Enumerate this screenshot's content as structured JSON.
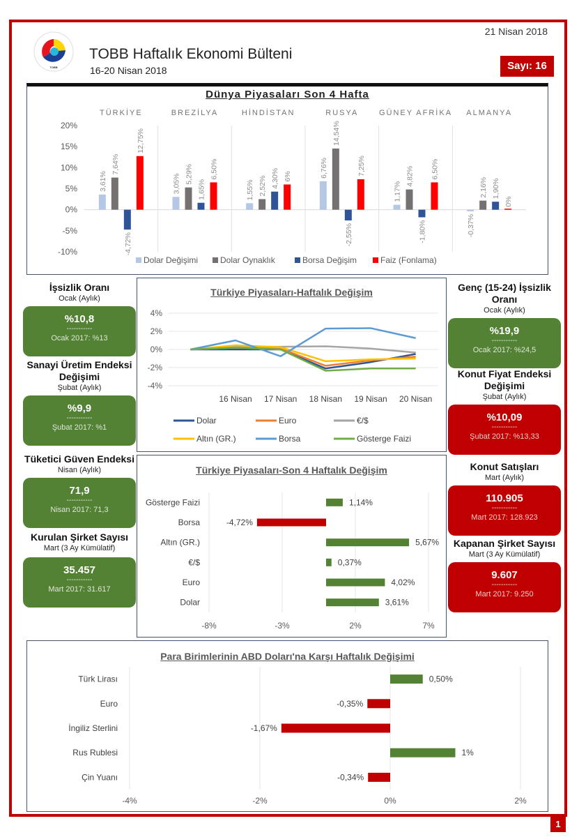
{
  "header": {
    "date": "21 Nisan 2018",
    "title": "TOBB Haftalık Ekonomi Bülteni",
    "subtitle": "16-20 Nisan 2018",
    "issue": "Sayı: 16",
    "logo_text": "TÜRKİYE ODALAR VE BORSALAR BİRLİĞİ TOBB",
    "page_number": "1"
  },
  "colors": {
    "brand_red": "#c00000",
    "kpi_green": "#548235",
    "dolar_degisimi": "#b4c7e7",
    "dolar_oynaklik": "#767171",
    "borsa_degisim": "#2f5597",
    "faiz": "#ff0000"
  },
  "kpis_left": [
    {
      "title": "İşsizlik Oranı",
      "period": "Ocak (Aylık)",
      "value": "%10,8",
      "dash": "-----------",
      "previous": "Ocak 2017: %13",
      "status": "green"
    },
    {
      "title": "Sanayi Üretim Endeksi Değişimi",
      "period": "Şubat (Aylık)",
      "value": "%9,9",
      "dash": "-----------",
      "previous": "Şubat 2017: %1",
      "status": "green"
    },
    {
      "title": "Tüketici Güven Endeksi",
      "period": "Nisan (Aylık)",
      "value": "71,9",
      "dash": "-----------",
      "previous": "Nisan 2017: 71,3",
      "status": "green"
    },
    {
      "title": "Kurulan Şirket Sayısı",
      "period": "Mart (3 Ay Kümülatif)",
      "value": "35.457",
      "dash": "-----------",
      "previous": "Mart 2017: 31.617",
      "status": "green"
    }
  ],
  "kpis_right": [
    {
      "title": "Genç (15-24) İşsizlik Oranı",
      "period": "Ocak (Aylık)",
      "value": "%19,9",
      "dash": "-----------",
      "previous": "Ocak 2017: %24,5",
      "status": "green"
    },
    {
      "title": "Konut Fiyat Endeksi Değişimi",
      "period": "Şubat (Aylık)",
      "value": "%10,09",
      "dash": "-----------",
      "previous": "Şubat 2017: %13,33",
      "status": "red"
    },
    {
      "title": "Konut Satışları",
      "period": "Mart (Aylık)",
      "value": "110.905",
      "dash": "-----------",
      "previous": "Mart 2017: 128.923",
      "status": "red"
    },
    {
      "title": "Kapanan Şirket Sayısı",
      "period": "Mart (3 Ay Kümülatif)",
      "value": "9.607",
      "dash": "-----------",
      "previous": "Mart 2017: 9.250",
      "status": "red"
    }
  ],
  "chart_data": [
    {
      "type": "bar",
      "title": "Dünya Piyasaları Son 4 Hafta",
      "categories": [
        "TÜRKİYE",
        "BREZİLYA",
        "HİNDİSTAN",
        "RUSYA",
        "GÜNEY AFRİKA",
        "ALMANYA"
      ],
      "series": [
        {
          "name": "Dolar Değişimi",
          "color": "#b4c7e7",
          "values": [
            3.61,
            3.05,
            1.55,
            6.76,
            1.17,
            -0.37
          ],
          "labels": [
            "3,61%",
            "3,05%",
            "1,55%",
            "6,76%",
            "1,17%",
            "-0,37%"
          ]
        },
        {
          "name": "Dolar Oynaklık",
          "color": "#767171",
          "values": [
            7.64,
            5.29,
            2.52,
            14.54,
            4.82,
            2.16
          ],
          "labels": [
            "7,64%",
            "5,29%",
            "2,52%",
            "14,54%",
            "4,82%",
            "2,16%"
          ]
        },
        {
          "name": "Borsa Değişim",
          "color": "#2f5597",
          "values": [
            -4.72,
            1.65,
            4.3,
            -2.55,
            -1.8,
            1.9
          ],
          "labels": [
            "-4,72%",
            "1,65%",
            "4,30%",
            "-2,55%",
            "-1,80%",
            "1,90%"
          ]
        },
        {
          "name": "Faiz (Fonlama)",
          "color": "#ff0000",
          "values": [
            12.75,
            6.5,
            6.0,
            7.25,
            6.5,
            0
          ],
          "labels": [
            "12,75%",
            "6,50%",
            "6%",
            "7,25%",
            "6,50%",
            "0%"
          ]
        }
      ],
      "yticks": [
        "20%",
        "15%",
        "10%",
        "5%",
        "0%",
        "-5%",
        "-10%"
      ],
      "ylim": [
        -10,
        20
      ],
      "legend": "bottom"
    },
    {
      "type": "line",
      "title": "Türkiye Piyasaları-Haftalık Değişim",
      "categories": [
        "",
        "16 Nisan",
        "17 Nisan",
        "18 Nisan",
        "19 Nisan",
        "20 Nisan"
      ],
      "series": [
        {
          "name": "Dolar",
          "color": "#2f5597",
          "values": [
            0,
            0.0,
            0.0,
            -2.1,
            -1.4,
            -0.5
          ]
        },
        {
          "name": "Euro",
          "color": "#ed7d31",
          "values": [
            0,
            0.2,
            0.1,
            -1.8,
            -1.2,
            -0.8
          ]
        },
        {
          "name": "€/$",
          "color": "#a5a5a5",
          "values": [
            0,
            0.3,
            0.3,
            0.35,
            0.1,
            -0.35
          ]
        },
        {
          "name": "Altın (GR.)",
          "color": "#ffc000",
          "values": [
            0,
            0.45,
            0.25,
            -1.3,
            -1.1,
            -1.0
          ]
        },
        {
          "name": "Borsa",
          "color": "#5b9bd5",
          "values": [
            0,
            1.0,
            -0.75,
            2.3,
            2.35,
            1.25
          ]
        },
        {
          "name": "Gösterge Faizi",
          "color": "#70ad47",
          "values": [
            0,
            0.2,
            0.0,
            -2.35,
            -2.1,
            -2.1
          ]
        }
      ],
      "yticks": [
        "4%",
        "2%",
        "0%",
        "-2%",
        "-4%"
      ],
      "ylim": [
        -4,
        4
      ],
      "legend": "bottom"
    },
    {
      "type": "bar",
      "orientation": "horizontal",
      "title": "Türkiye Piyasaları-Son 4 Haftalık Değişim",
      "categories": [
        "Gösterge Faizi",
        "Borsa",
        "Altın (GR.)",
        "€/$",
        "Euro",
        "Dolar"
      ],
      "values": [
        1.14,
        -4.72,
        5.67,
        0.37,
        4.02,
        3.61
      ],
      "labels": [
        "1,14%",
        "-4,72%",
        "5,67%",
        "0,37%",
        "4,02%",
        "3,61%"
      ],
      "xticks": [
        "-8%",
        "-3%",
        "2%",
        "7%"
      ],
      "xlim": [
        -8,
        7
      ],
      "positive_color": "#548235",
      "negative_color": "#c00000"
    },
    {
      "type": "bar",
      "orientation": "horizontal",
      "title": "Para Birimlerinin ABD Doları'na Karşı Haftalık Değişimi",
      "categories": [
        "Türk Lirası",
        "Euro",
        "İngiliz Sterlini",
        "Rus Rublesi",
        "Çin Yuanı"
      ],
      "values": [
        0.5,
        -0.35,
        -1.67,
        1.0,
        -0.34
      ],
      "labels": [
        "0,50%",
        "-0,35%",
        "-1,67%",
        "1%",
        "-0,34%"
      ],
      "xticks": [
        "-4%",
        "-2%",
        "0%",
        "2%"
      ],
      "xlim": [
        -4,
        2
      ],
      "positive_color": "#548235",
      "negative_color": "#c00000"
    }
  ]
}
